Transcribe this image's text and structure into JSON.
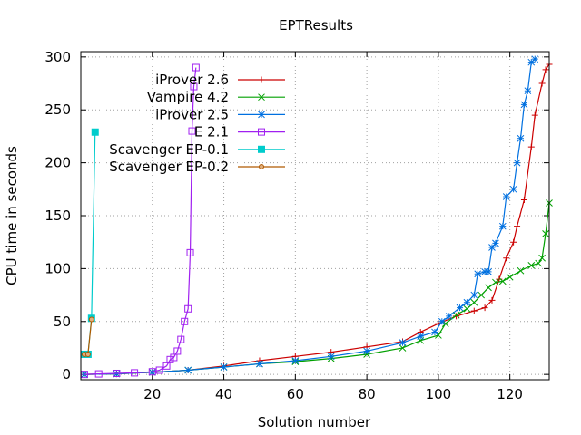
{
  "chart_data": {
    "type": "line",
    "title": "EPTResults",
    "xlabel": "Solution number",
    "ylabel": "CPU time in seconds",
    "xlim": [
      0,
      131
    ],
    "ylim": [
      -5,
      305
    ],
    "xticks": [
      20,
      40,
      60,
      80,
      100,
      120
    ],
    "yticks": [
      0,
      50,
      100,
      150,
      200,
      250,
      300
    ],
    "grid": true,
    "legend_position": "top-left",
    "series": [
      {
        "name": "iProver 2.6",
        "color": "#cc0000",
        "marker": "plus",
        "points": [
          [
            1,
            0
          ],
          [
            10,
            0.5
          ],
          [
            20,
            2
          ],
          [
            30,
            4
          ],
          [
            40,
            8
          ],
          [
            50,
            13
          ],
          [
            60,
            17
          ],
          [
            70,
            21
          ],
          [
            80,
            26
          ],
          [
            90,
            31
          ],
          [
            95,
            40
          ],
          [
            100,
            48
          ],
          [
            105,
            55
          ],
          [
            110,
            60
          ],
          [
            113,
            63
          ],
          [
            115,
            70
          ],
          [
            117,
            90
          ],
          [
            119,
            110
          ],
          [
            121,
            125
          ],
          [
            122,
            140
          ],
          [
            124,
            165
          ],
          [
            126,
            215
          ],
          [
            127,
            245
          ],
          [
            129,
            275
          ],
          [
            130,
            288
          ],
          [
            131,
            293
          ]
        ]
      },
      {
        "name": "Vampire 4.2",
        "color": "#00a000",
        "marker": "x",
        "points": [
          [
            1,
            0
          ],
          [
            10,
            0.5
          ],
          [
            20,
            2
          ],
          [
            30,
            4
          ],
          [
            40,
            7
          ],
          [
            50,
            10
          ],
          [
            60,
            12
          ],
          [
            70,
            15
          ],
          [
            80,
            19
          ],
          [
            90,
            25
          ],
          [
            95,
            32
          ],
          [
            100,
            37
          ],
          [
            102,
            48
          ],
          [
            105,
            56
          ],
          [
            108,
            62
          ],
          [
            110,
            68
          ],
          [
            112,
            75
          ],
          [
            114,
            82
          ],
          [
            116,
            87
          ],
          [
            118,
            88
          ],
          [
            120,
            92
          ],
          [
            123,
            98
          ],
          [
            126,
            103
          ],
          [
            128,
            105
          ],
          [
            129,
            110
          ],
          [
            130,
            133
          ],
          [
            131,
            162
          ]
        ]
      },
      {
        "name": "iProver 2.5",
        "color": "#0070e0",
        "marker": "star",
        "points": [
          [
            1,
            0
          ],
          [
            10,
            0.5
          ],
          [
            20,
            2
          ],
          [
            30,
            4
          ],
          [
            40,
            7
          ],
          [
            50,
            10
          ],
          [
            60,
            13
          ],
          [
            70,
            17
          ],
          [
            80,
            22
          ],
          [
            90,
            30
          ],
          [
            95,
            36
          ],
          [
            99,
            40
          ],
          [
            101,
            50
          ],
          [
            103,
            55
          ],
          [
            106,
            63
          ],
          [
            108,
            68
          ],
          [
            110,
            75
          ],
          [
            111,
            95
          ],
          [
            113,
            97
          ],
          [
            114,
            97
          ],
          [
            115,
            120
          ],
          [
            116,
            124
          ],
          [
            118,
            140
          ],
          [
            119,
            168
          ],
          [
            121,
            175
          ],
          [
            122,
            200
          ],
          [
            123,
            223
          ],
          [
            124,
            255
          ],
          [
            125,
            268
          ],
          [
            126,
            295
          ],
          [
            127,
            298
          ]
        ]
      },
      {
        "name": "E 2.1",
        "color": "#a020f0",
        "marker": "square",
        "points": [
          [
            1,
            0
          ],
          [
            5,
            0.5
          ],
          [
            10,
            1
          ],
          [
            15,
            1.5
          ],
          [
            20,
            2.5
          ],
          [
            22,
            4
          ],
          [
            24,
            8
          ],
          [
            25,
            14
          ],
          [
            26,
            16
          ],
          [
            27,
            22
          ],
          [
            28,
            33
          ],
          [
            29,
            50
          ],
          [
            30,
            62
          ],
          [
            30.6,
            115
          ],
          [
            31.1,
            230
          ],
          [
            31.6,
            272
          ],
          [
            32.2,
            290
          ]
        ]
      },
      {
        "name": "Scavenger EP-0.1",
        "color": "#00cccc",
        "marker": "filled-square",
        "points": [
          [
            1,
            19
          ],
          [
            2,
            19
          ],
          [
            3,
            53
          ],
          [
            4,
            229
          ]
        ]
      },
      {
        "name": "Scavenger EP-0.2",
        "color": "#b05a00",
        "marker": "circle",
        "points": [
          [
            1,
            19
          ],
          [
            2,
            19
          ],
          [
            3,
            52
          ]
        ]
      }
    ]
  }
}
